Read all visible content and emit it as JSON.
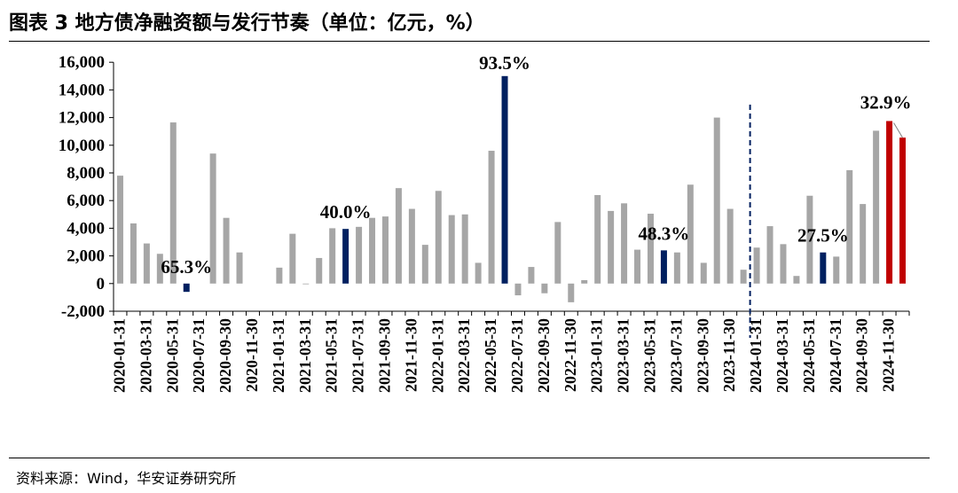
{
  "title": "图表 3 地方债净融资额与发行节奏（单位：亿元，%）",
  "source": "资料来源：Wind，华安证券研究所",
  "colors": {
    "gray": "#A6A6A6",
    "navy": "#002060",
    "red": "#C00000",
    "axis": "#000000"
  },
  "chart_data": {
    "type": "bar",
    "ylim": [
      -2000,
      16000
    ],
    "yticks": [
      "-2,000",
      "0",
      "2,000",
      "4,000",
      "6,000",
      "8,000",
      "10,000",
      "12,000",
      "14,000",
      "16,000"
    ],
    "xtick_labels": [
      "2020-01-31",
      "2020-03-31",
      "2020-05-31",
      "2020-07-31",
      "2020-09-30",
      "2020-11-30",
      "2021-01-31",
      "2021-03-31",
      "2021-05-31",
      "2021-07-31",
      "2021-09-30",
      "2021-11-30",
      "2022-01-31",
      "2022-03-31",
      "2022-05-31",
      "2022-07-31",
      "2022-09-30",
      "2022-11-30",
      "2023-01-31",
      "2023-03-31",
      "2023-05-31",
      "2023-07-31",
      "2023-09-30",
      "2023-11-30",
      "2024-01-31",
      "2024-03-31",
      "2024-05-31",
      "2024-07-31",
      "2024-09-30",
      "2024-11-30"
    ],
    "dashed_divider_after": "2023-12-31",
    "bars": [
      {
        "x": "2020-01-31",
        "value": 7800,
        "color": "gray"
      },
      {
        "x": "2020-02-29",
        "value": 4350,
        "color": "gray"
      },
      {
        "x": "2020-03-31",
        "value": 2900,
        "color": "gray"
      },
      {
        "x": "2020-04-30",
        "value": 2150,
        "color": "gray"
      },
      {
        "x": "2020-05-31",
        "value": 11650,
        "color": "gray"
      },
      {
        "x": "2020-06-30",
        "value": -600,
        "color": "navy"
      },
      {
        "x": "2020-07-31",
        "value": 0,
        "color": "gray"
      },
      {
        "x": "2020-08-31",
        "value": 9400,
        "color": "gray"
      },
      {
        "x": "2020-09-30",
        "value": 4750,
        "color": "gray"
      },
      {
        "x": "2020-10-31",
        "value": 2250,
        "color": "gray"
      },
      {
        "x": "2020-11-30",
        "value": 0,
        "color": "gray"
      },
      {
        "x": "2020-12-31",
        "value": 0,
        "color": "gray"
      },
      {
        "x": "2021-01-31",
        "value": 1150,
        "color": "gray"
      },
      {
        "x": "2021-02-28",
        "value": 3600,
        "color": "gray"
      },
      {
        "x": "2021-03-31",
        "value": -50,
        "color": "gray"
      },
      {
        "x": "2021-04-30",
        "value": 1850,
        "color": "gray"
      },
      {
        "x": "2021-05-31",
        "value": 4000,
        "color": "gray"
      },
      {
        "x": "2021-06-30",
        "value": 3950,
        "color": "navy"
      },
      {
        "x": "2021-07-31",
        "value": 4100,
        "color": "gray"
      },
      {
        "x": "2021-08-31",
        "value": 4750,
        "color": "gray"
      },
      {
        "x": "2021-09-30",
        "value": 4850,
        "color": "gray"
      },
      {
        "x": "2021-10-31",
        "value": 6900,
        "color": "gray"
      },
      {
        "x": "2021-11-30",
        "value": 5400,
        "color": "gray"
      },
      {
        "x": "2021-12-31",
        "value": 2800,
        "color": "gray"
      },
      {
        "x": "2022-01-31",
        "value": 6700,
        "color": "gray"
      },
      {
        "x": "2022-02-28",
        "value": 4950,
        "color": "gray"
      },
      {
        "x": "2022-03-31",
        "value": 5000,
        "color": "gray"
      },
      {
        "x": "2022-04-30",
        "value": 1500,
        "color": "gray"
      },
      {
        "x": "2022-05-31",
        "value": 9600,
        "color": "gray"
      },
      {
        "x": "2022-06-30",
        "value": 15000,
        "color": "navy"
      },
      {
        "x": "2022-07-31",
        "value": -850,
        "color": "gray"
      },
      {
        "x": "2022-08-31",
        "value": 1200,
        "color": "gray"
      },
      {
        "x": "2022-09-30",
        "value": -700,
        "color": "gray"
      },
      {
        "x": "2022-10-31",
        "value": 4450,
        "color": "gray"
      },
      {
        "x": "2022-11-30",
        "value": -1350,
        "color": "gray"
      },
      {
        "x": "2022-12-31",
        "value": 250,
        "color": "gray"
      },
      {
        "x": "2023-01-31",
        "value": 6400,
        "color": "gray"
      },
      {
        "x": "2023-02-28",
        "value": 5250,
        "color": "gray"
      },
      {
        "x": "2023-03-31",
        "value": 5800,
        "color": "gray"
      },
      {
        "x": "2023-04-30",
        "value": 2450,
        "color": "gray"
      },
      {
        "x": "2023-05-31",
        "value": 5050,
        "color": "gray"
      },
      {
        "x": "2023-06-30",
        "value": 2400,
        "color": "navy"
      },
      {
        "x": "2023-07-31",
        "value": 2250,
        "color": "gray"
      },
      {
        "x": "2023-08-31",
        "value": 7150,
        "color": "gray"
      },
      {
        "x": "2023-09-30",
        "value": 1500,
        "color": "gray"
      },
      {
        "x": "2023-10-31",
        "value": 12000,
        "color": "gray"
      },
      {
        "x": "2023-11-30",
        "value": 5400,
        "color": "gray"
      },
      {
        "x": "2023-12-31",
        "value": 1000,
        "color": "gray"
      },
      {
        "x": "2024-01-31",
        "value": 2600,
        "color": "gray"
      },
      {
        "x": "2024-02-29",
        "value": 4150,
        "color": "gray"
      },
      {
        "x": "2024-03-31",
        "value": 2850,
        "color": "gray"
      },
      {
        "x": "2024-04-30",
        "value": 550,
        "color": "gray"
      },
      {
        "x": "2024-05-31",
        "value": 6350,
        "color": "gray"
      },
      {
        "x": "2024-06-30",
        "value": 2250,
        "color": "navy"
      },
      {
        "x": "2024-07-31",
        "value": 1950,
        "color": "gray"
      },
      {
        "x": "2024-08-31",
        "value": 8200,
        "color": "gray"
      },
      {
        "x": "2024-09-30",
        "value": 5750,
        "color": "gray"
      },
      {
        "x": "2024-10-31",
        "value": 11050,
        "color": "gray"
      },
      {
        "x": "2024-11-30",
        "value": 11750,
        "color": "red"
      },
      {
        "x": "2024-12-31",
        "value": 10550,
        "color": "red"
      }
    ],
    "annotations": [
      {
        "text": "65.3%",
        "x": "2020-06-30"
      },
      {
        "text": "40.0%",
        "x": "2021-06-30"
      },
      {
        "text": "93.5%",
        "x": "2022-06-30"
      },
      {
        "text": "48.3%",
        "x": "2023-06-30"
      },
      {
        "text": "27.5%",
        "x": "2024-06-30"
      },
      {
        "text": "32.9%",
        "x": "2024-11-30"
      }
    ]
  }
}
